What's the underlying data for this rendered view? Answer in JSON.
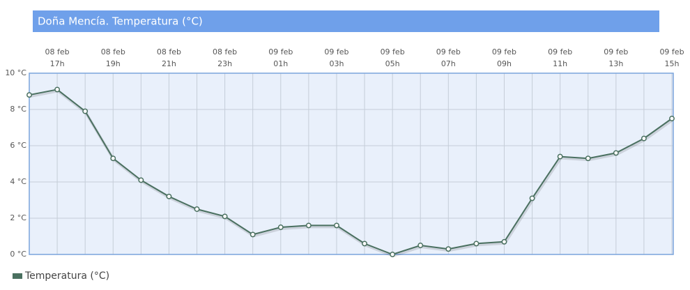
{
  "chart_data": {
    "type": "line",
    "title": "Doña Mencía. Temperatura (°C)",
    "categories": [
      null,
      [
        "08 feb",
        "17h"
      ],
      null,
      [
        "08 feb",
        "19h"
      ],
      null,
      [
        "08 feb",
        "21h"
      ],
      null,
      [
        "08 feb",
        "23h"
      ],
      null,
      [
        "09 feb",
        "01h"
      ],
      null,
      [
        "09 feb",
        "03h"
      ],
      null,
      [
        "09 feb",
        "05h"
      ],
      null,
      [
        "09 feb",
        "07h"
      ],
      null,
      [
        "09 feb",
        "09h"
      ],
      null,
      [
        "09 feb",
        "11h"
      ],
      null,
      [
        "09 feb",
        "13h"
      ],
      null,
      [
        "09 feb",
        "15h"
      ]
    ],
    "series": [
      {
        "name": "Temperatura (°C)",
        "color": "#4a7060",
        "values": [
          8.8,
          9.1,
          7.9,
          5.3,
          4.1,
          3.2,
          2.5,
          2.1,
          1.1,
          1.5,
          1.6,
          1.6,
          0.6,
          0.0,
          0.5,
          0.3,
          0.6,
          0.7,
          3.1,
          5.4,
          5.3,
          5.6,
          6.4,
          7.5
        ]
      }
    ],
    "ylim": [
      0,
      10
    ],
    "yticks": [
      {
        "value": 0,
        "label": "0 °C"
      },
      {
        "value": 2,
        "label": "2 °C"
      },
      {
        "value": 4,
        "label": "4 °C"
      },
      {
        "value": 6,
        "label": "6 °C"
      },
      {
        "value": 8,
        "label": "8 °C"
      },
      {
        "value": 10,
        "label": "10 °C"
      }
    ],
    "grid": true
  }
}
